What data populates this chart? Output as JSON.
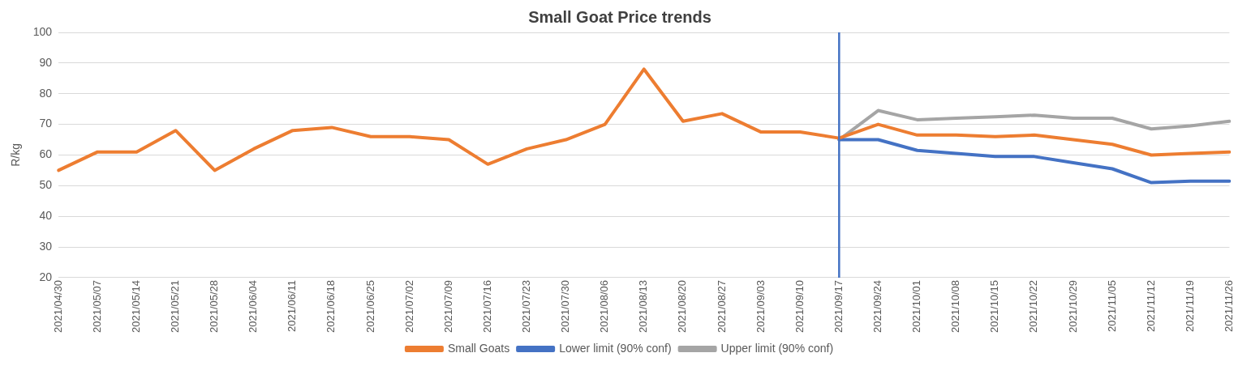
{
  "chart_data": {
    "type": "line",
    "title": "Small Goat Price trends",
    "ylabel": "R/kg",
    "categories": [
      "2021/04/30",
      "2021/05/07",
      "2021/05/14",
      "2021/05/21",
      "2021/05/28",
      "2021/06/04",
      "2021/06/11",
      "2021/06/18",
      "2021/06/25",
      "2021/07/02",
      "2021/07/09",
      "2021/07/16",
      "2021/07/23",
      "2021/07/30",
      "2021/08/06",
      "2021/08/13",
      "2021/08/20",
      "2021/08/27",
      "2021/09/03",
      "2021/09/10",
      "2021/09/17",
      "2021/09/24",
      "2021/10/01",
      "2021/10/08",
      "2021/10/15",
      "2021/10/22",
      "2021/10/29",
      "2021/11/05",
      "2021/11/12",
      "2021/11/19",
      "2021/11/26"
    ],
    "series": [
      {
        "name": "Small Goats",
        "color": "#ed7d31",
        "values": [
          55,
          61,
          61,
          68,
          55,
          62,
          68,
          69,
          66,
          66,
          65,
          57,
          62,
          65,
          70,
          88,
          71,
          73.5,
          67.5,
          67.5,
          65.5,
          70,
          66.5,
          66.5,
          66,
          66.5,
          65,
          63.5,
          60,
          60.5,
          61
        ]
      },
      {
        "name": "Lower limit (90% conf)",
        "color": "#4472c4",
        "values": [
          null,
          null,
          null,
          null,
          null,
          null,
          null,
          null,
          null,
          null,
          null,
          null,
          null,
          null,
          null,
          null,
          null,
          null,
          null,
          null,
          65,
          65,
          61.5,
          60.5,
          59.5,
          59.5,
          57.5,
          55.5,
          51,
          51.5,
          51.5
        ]
      },
      {
        "name": "Upper limit (90% conf)",
        "color": "#a5a5a5",
        "values": [
          null,
          null,
          null,
          null,
          null,
          null,
          null,
          null,
          null,
          null,
          null,
          null,
          null,
          null,
          null,
          null,
          null,
          null,
          null,
          null,
          65,
          74.5,
          71.5,
          72,
          72.5,
          73,
          72,
          72,
          68.5,
          69.5,
          71
        ]
      }
    ],
    "ylim": [
      20,
      100
    ],
    "yticks": [
      20,
      30,
      40,
      50,
      60,
      70,
      80,
      90,
      100
    ],
    "ref_lines": [
      {
        "axis": "x",
        "value": "2021/09/17",
        "color": "#4472c4"
      }
    ],
    "grid": "y",
    "legend": "bottom",
    "marker": "none",
    "line_style": "solid"
  }
}
